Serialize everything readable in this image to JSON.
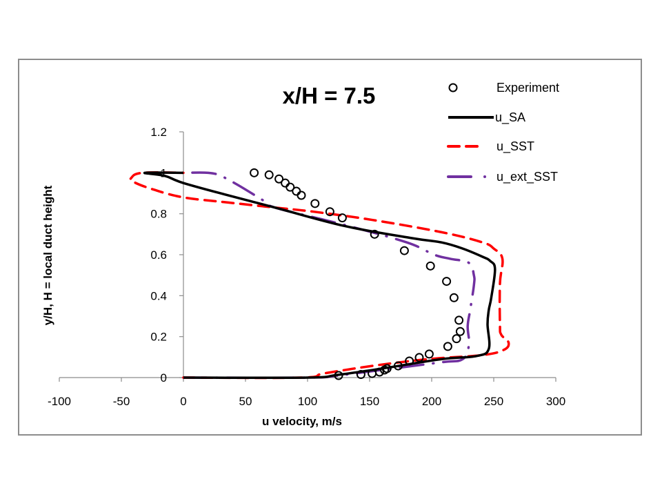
{
  "chart_data": {
    "type": "line",
    "title": "x/H = 7.5",
    "xlabel": "u velocity, m/s",
    "ylabel": "y/H, H = local duct height",
    "xlim": [
      -100,
      300
    ],
    "ylim": [
      0,
      1.2
    ],
    "xticks": [
      -100,
      -50,
      0,
      50,
      100,
      150,
      200,
      250,
      300
    ],
    "xtick_labels": [
      "-100",
      "-50",
      "0",
      "50",
      "100",
      "150",
      "200",
      "250",
      "300"
    ],
    "yticks": [
      0,
      0.2,
      0.4,
      0.6,
      0.8,
      1.0,
      1.2
    ],
    "ytick_labels": [
      "0",
      "0.2",
      "0.4",
      "0.6",
      "0.8",
      "1",
      "1.2"
    ],
    "grid": false,
    "legend_position": "top-right",
    "series": [
      {
        "name": "Experiment",
        "style": "markers-open-circle",
        "color": "#000000",
        "points": [
          [
            57,
            1.0
          ],
          [
            69,
            0.99
          ],
          [
            77,
            0.97
          ],
          [
            82,
            0.95
          ],
          [
            86,
            0.93
          ],
          [
            91,
            0.91
          ],
          [
            95,
            0.89
          ],
          [
            106,
            0.85
          ],
          [
            118,
            0.81
          ],
          [
            128,
            0.78
          ],
          [
            154,
            0.7
          ],
          [
            178,
            0.62
          ],
          [
            199,
            0.545
          ],
          [
            212,
            0.47
          ],
          [
            218,
            0.39
          ],
          [
            222,
            0.28
          ],
          [
            223,
            0.225
          ],
          [
            220,
            0.19
          ],
          [
            213,
            0.152
          ],
          [
            198,
            0.115
          ],
          [
            190,
            0.098
          ],
          [
            182,
            0.081
          ],
          [
            173,
            0.057
          ],
          [
            164,
            0.044
          ],
          [
            162,
            0.037
          ],
          [
            158,
            0.027
          ],
          [
            152,
            0.02
          ],
          [
            143,
            0.015
          ],
          [
            125,
            0.01
          ]
        ]
      },
      {
        "name": "u_SA",
        "style": "solid",
        "color": "#000000",
        "points": [
          [
            0,
            0.0
          ],
          [
            100,
            0.0
          ],
          [
            124,
            0.013
          ],
          [
            163,
            0.047
          ],
          [
            208,
            0.09
          ],
          [
            236,
            0.105
          ],
          [
            246,
            0.14
          ],
          [
            245,
            0.26
          ],
          [
            246,
            0.33
          ],
          [
            248,
            0.39
          ],
          [
            251,
            0.53
          ],
          [
            247,
            0.57
          ],
          [
            241,
            0.59
          ],
          [
            225,
            0.63
          ],
          [
            208,
            0.66
          ],
          [
            185,
            0.68
          ],
          [
            130,
            0.74
          ],
          [
            74,
            0.83
          ],
          [
            36,
            0.89
          ],
          [
            0,
            0.95
          ],
          [
            -15,
            0.985
          ],
          [
            -31,
            1.0
          ],
          [
            0,
            1.0
          ]
        ]
      },
      {
        "name": "u_SST",
        "style": "dashed",
        "color": "#ff0000",
        "points": [
          [
            0,
            0.0
          ],
          [
            95,
            0.0
          ],
          [
            113,
            0.02
          ],
          [
            152,
            0.057
          ],
          [
            197,
            0.09
          ],
          [
            241,
            0.11
          ],
          [
            258,
            0.135
          ],
          [
            262,
            0.17
          ],
          [
            256,
            0.21
          ],
          [
            255,
            0.26
          ],
          [
            255,
            0.46
          ],
          [
            257,
            0.58
          ],
          [
            250,
            0.63
          ],
          [
            241,
            0.66
          ],
          [
            208,
            0.71
          ],
          [
            152,
            0.77
          ],
          [
            105,
            0.81
          ],
          [
            74,
            0.83
          ],
          [
            36,
            0.855
          ],
          [
            0,
            0.88
          ],
          [
            -25,
            0.92
          ],
          [
            -40,
            0.955
          ],
          [
            -42,
            0.975
          ],
          [
            -33,
            1.0
          ],
          [
            0,
            1.0
          ]
        ]
      },
      {
        "name": "u_ext_SST",
        "style": "dash-dot",
        "color": "#7030a0",
        "points": [
          [
            0,
            0.0
          ],
          [
            100,
            0.0
          ],
          [
            124,
            0.01
          ],
          [
            163,
            0.04
          ],
          [
            208,
            0.075
          ],
          [
            225,
            0.09
          ],
          [
            230,
            0.16
          ],
          [
            229,
            0.25
          ],
          [
            231,
            0.33
          ],
          [
            234,
            0.45
          ],
          [
            234,
            0.5
          ],
          [
            230,
            0.56
          ],
          [
            215,
            0.58
          ],
          [
            202,
            0.6
          ],
          [
            180,
            0.66
          ],
          [
            130,
            0.745
          ],
          [
            74,
            0.83
          ],
          [
            63,
            0.87
          ],
          [
            44,
            0.94
          ],
          [
            30,
            0.985
          ],
          [
            20,
            1.0
          ],
          [
            0,
            1.0
          ]
        ]
      }
    ]
  },
  "legend": {
    "items": [
      {
        "label": "Experiment",
        "icon": "open-circle-marker"
      },
      {
        "label": "u_SA",
        "icon": "solid-black-line"
      },
      {
        "label": "u_SST",
        "icon": "red-dashed-line"
      },
      {
        "label": "u_ext_SST",
        "icon": "purple-dash-dot-line"
      }
    ]
  }
}
